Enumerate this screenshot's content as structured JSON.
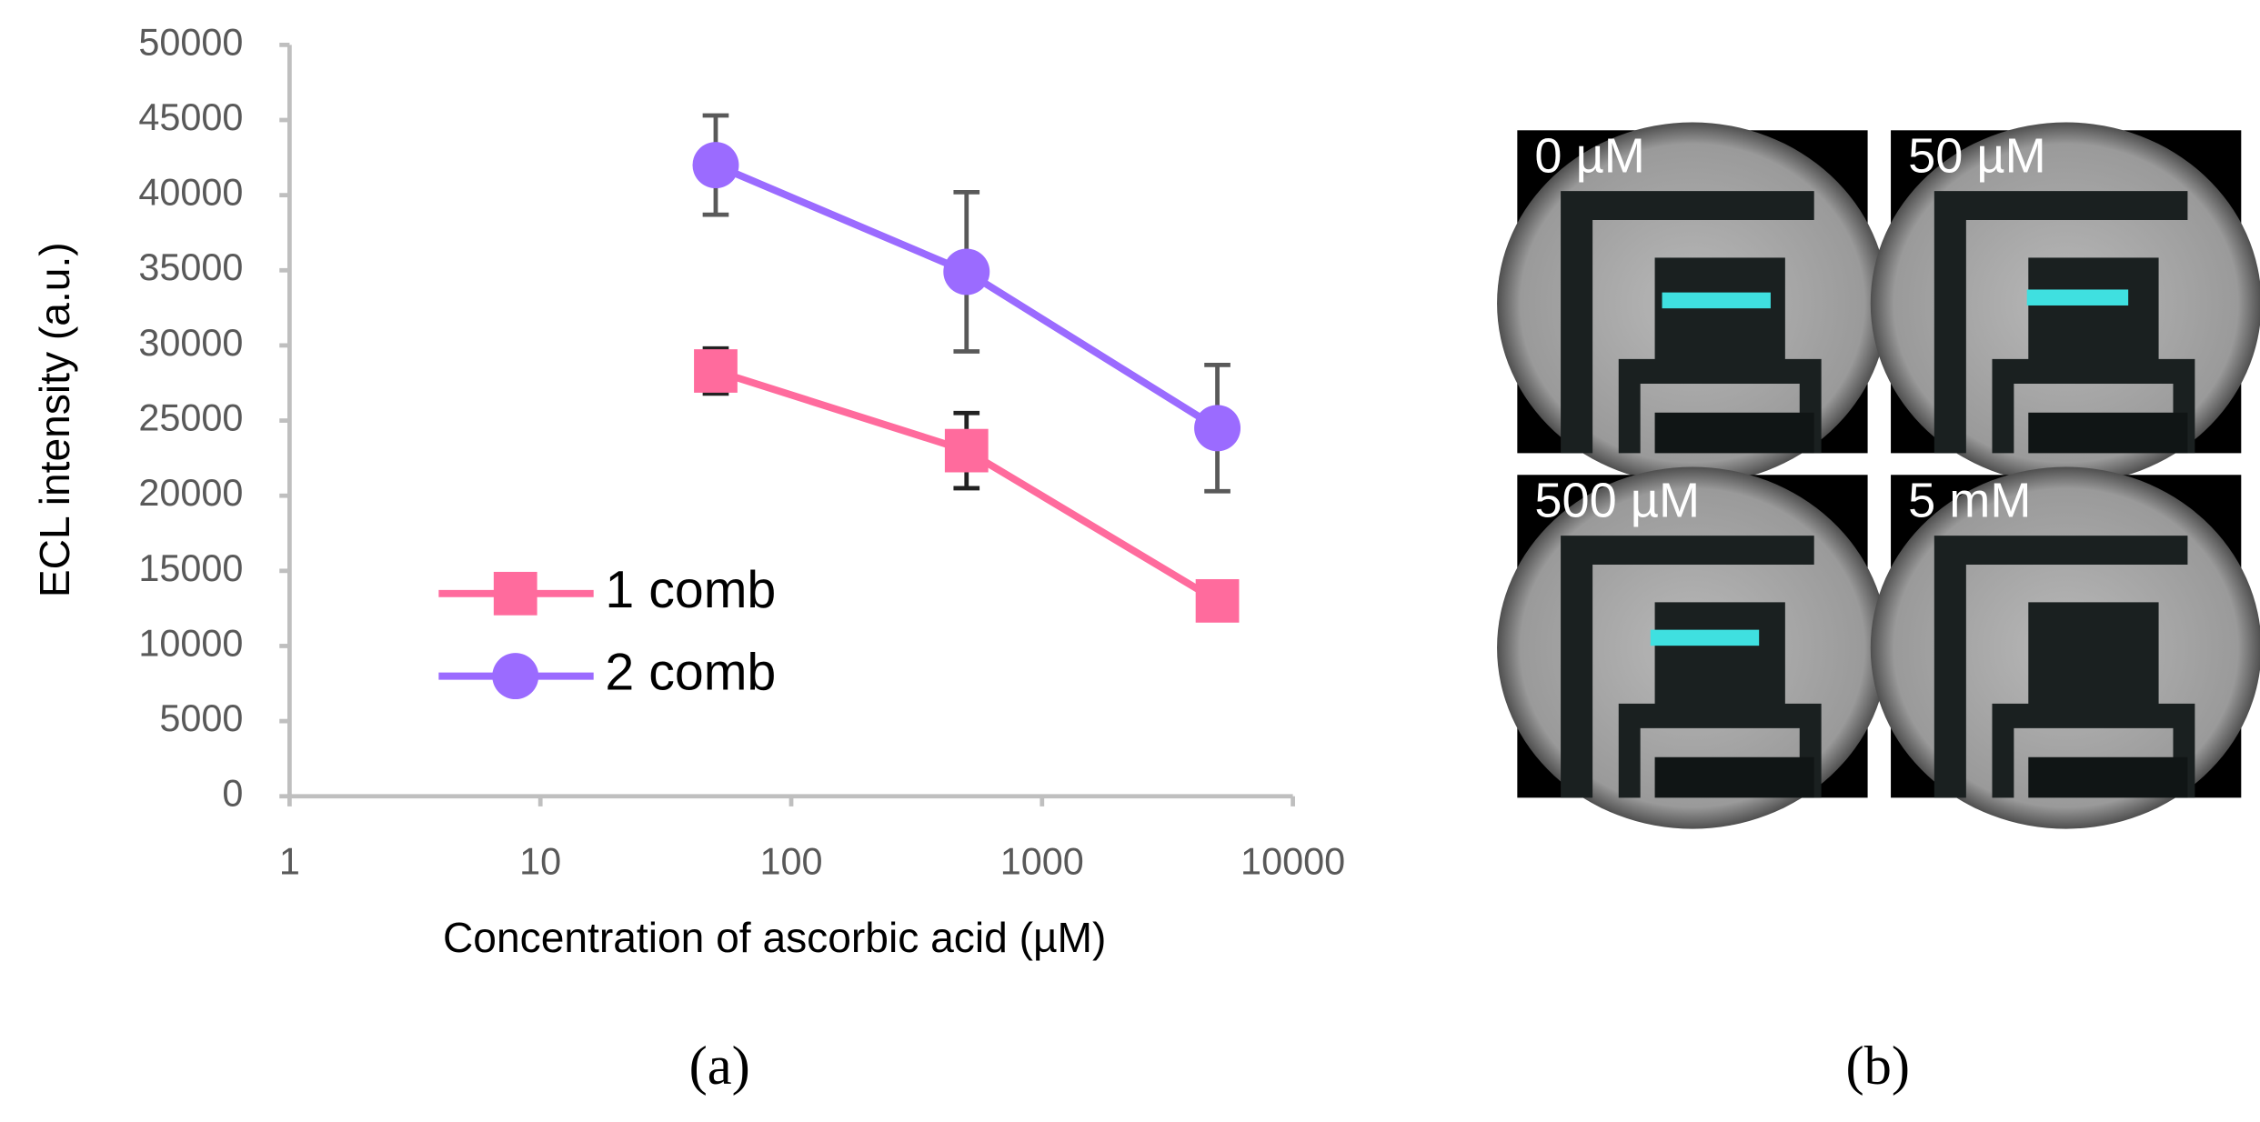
{
  "chart_data": {
    "type": "line",
    "xlabel": "Concentration of ascorbic acid (µM)",
    "ylabel": "ECL intensity (a.u.)",
    "x": [
      50,
      500,
      5000
    ],
    "xlog": true,
    "xlim": [
      1,
      10000
    ],
    "xticks": [
      1,
      10,
      100,
      1000,
      10000
    ],
    "ylim": [
      0,
      50000
    ],
    "yticks": [
      0,
      5000,
      10000,
      15000,
      20000,
      25000,
      30000,
      35000,
      40000,
      45000,
      50000
    ],
    "grid": false,
    "legend": "lower-left",
    "series": [
      {
        "name": "1 comb",
        "color": "#ff6b9d",
        "marker": "square",
        "error_color": "#222222",
        "values": [
          28300,
          23000,
          13000
        ],
        "errors": [
          1500,
          2500,
          null
        ]
      },
      {
        "name": "2 comb",
        "color": "#9b6bff",
        "marker": "circle",
        "error_color": "#595959",
        "values": [
          42000,
          34900,
          24500
        ],
        "errors": [
          3300,
          5300,
          4200
        ]
      }
    ]
  },
  "panels": {
    "a": "(a)",
    "b": "(b)"
  },
  "images": [
    {
      "label": "0 µM"
    },
    {
      "label": "50 µM"
    },
    {
      "label": "500 µM"
    },
    {
      "label": "5 mM"
    }
  ]
}
